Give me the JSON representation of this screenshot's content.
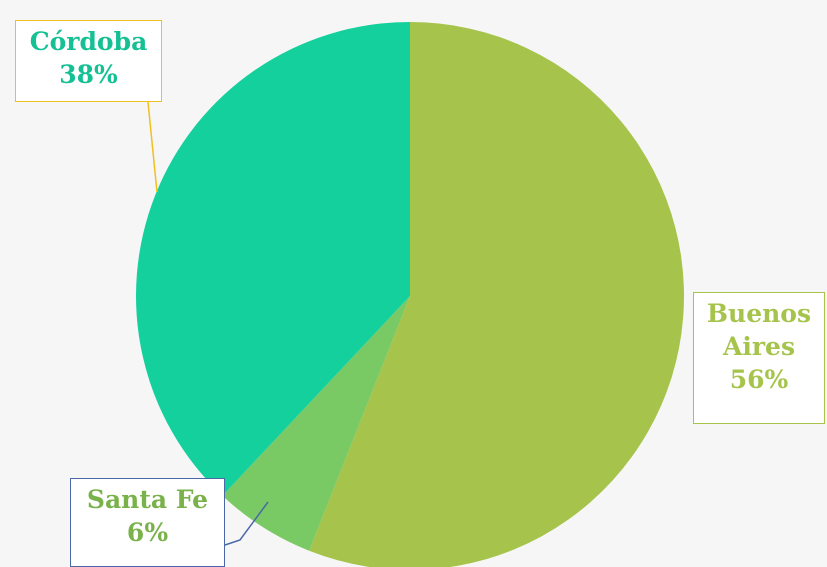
{
  "chart_data": {
    "type": "pie",
    "categories": [
      "Buenos Aires",
      "Santa Fe",
      "Córdoba"
    ],
    "values": [
      56,
      6,
      38
    ],
    "value_labels": [
      "56%",
      "6%",
      "38%"
    ],
    "colors": [
      "#a6c44b",
      "#79c965",
      "#14d09c"
    ]
  }
}
